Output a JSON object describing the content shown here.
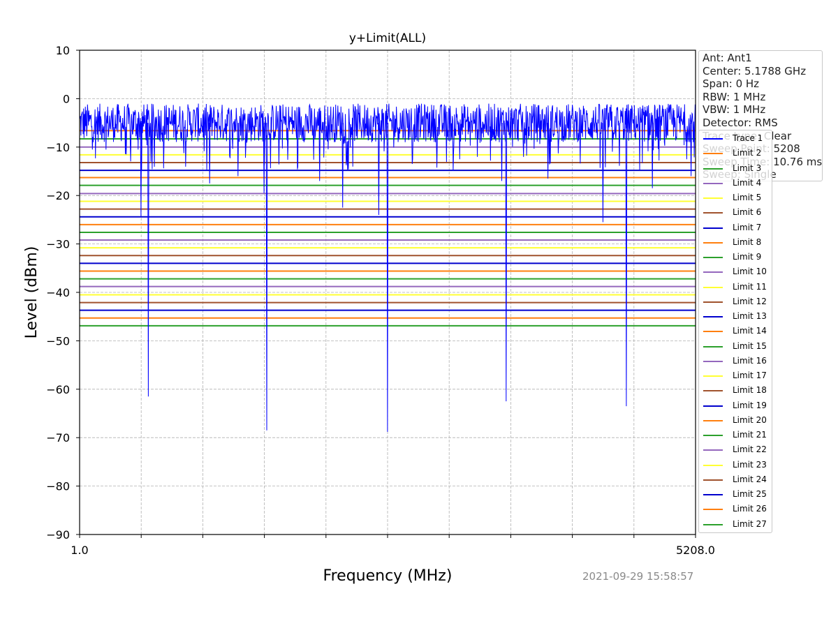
{
  "chart_data": {
    "type": "line",
    "title": "y+Limit(ALL)",
    "xlabel": "Frequency (MHz)",
    "ylabel": "Level (dBm)",
    "xlim": [
      1.0,
      5208.0
    ],
    "ylim": [
      -90,
      10
    ],
    "x_tick_labels": [
      "1.0",
      "5208.0"
    ],
    "x_minor_ticks": 9,
    "y_ticks": [
      10,
      0,
      -10,
      -20,
      -30,
      -40,
      -50,
      -60,
      -70,
      -80,
      -90
    ],
    "y_tick_labels": [
      "10",
      "0",
      "−10",
      "−20",
      "−30",
      "−40",
      "−50",
      "−60",
      "−70",
      "−80",
      "−90"
    ],
    "grid": true,
    "legend_position": "right",
    "trace": {
      "name": "Trace 1",
      "color": "#0000ff",
      "baseline_dbm": -5,
      "noise_range_dbm": [
        -9,
        -1
      ],
      "dips": [
        {
          "x": 582,
          "y": -61.5
        },
        {
          "x": 1583,
          "y": -68.5
        },
        {
          "x": 2604,
          "y": -68.8
        },
        {
          "x": 3607,
          "y": -62.5
        },
        {
          "x": 4623,
          "y": -63.5
        },
        {
          "x": 520,
          "y": -24.5
        },
        {
          "x": 1560,
          "y": -19.5
        },
        {
          "x": 2225,
          "y": -22.5
        },
        {
          "x": 2530,
          "y": -24
        },
        {
          "x": 3570,
          "y": -17
        },
        {
          "x": 4425,
          "y": -25.5
        },
        {
          "x": 4843,
          "y": -18.5
        },
        {
          "x": 1100,
          "y": -17.5
        },
        {
          "x": 1340,
          "y": -16
        },
        {
          "x": 2030,
          "y": -17
        },
        {
          "x": 3960,
          "y": -16.5
        },
        {
          "x": 5170,
          "y": -16
        }
      ]
    },
    "limits": [
      {
        "name": "Limit 2",
        "value": -6.6,
        "color": "#ff7f0e"
      },
      {
        "name": "Limit 3",
        "value": -8.3,
        "color": "#2ca02c"
      },
      {
        "name": "Limit 4",
        "value": -10,
        "color": "#9467bd"
      },
      {
        "name": "Limit 5",
        "value": -11.6,
        "color": "#ffff33"
      },
      {
        "name": "Limit 6",
        "value": -13.2,
        "color": "#a0522d"
      },
      {
        "name": "Limit 7",
        "value": -14.8,
        "color": "#0000cd"
      },
      {
        "name": "Limit 8",
        "value": -16.3,
        "color": "#ff7f0e"
      },
      {
        "name": "Limit 9",
        "value": -17.9,
        "color": "#2ca02c"
      },
      {
        "name": "Limit 10",
        "value": -19.6,
        "color": "#9467bd"
      },
      {
        "name": "Limit 11",
        "value": -21.2,
        "color": "#ffff33"
      },
      {
        "name": "Limit 12",
        "value": -22.8,
        "color": "#a0522d"
      },
      {
        "name": "Limit 13",
        "value": -24.4,
        "color": "#0000cd"
      },
      {
        "name": "Limit 14",
        "value": -26,
        "color": "#ff7f0e"
      },
      {
        "name": "Limit 15",
        "value": -27.6,
        "color": "#2ca02c"
      },
      {
        "name": "Limit 16",
        "value": -29.2,
        "color": "#9467bd"
      },
      {
        "name": "Limit 17",
        "value": -30.8,
        "color": "#ffff33"
      },
      {
        "name": "Limit 18",
        "value": -32.4,
        "color": "#a0522d"
      },
      {
        "name": "Limit 19",
        "value": -34,
        "color": "#0000cd"
      },
      {
        "name": "Limit 20",
        "value": -35.6,
        "color": "#ff7f0e"
      },
      {
        "name": "Limit 21",
        "value": -37.2,
        "color": "#2ca02c"
      },
      {
        "name": "Limit 22",
        "value": -38.8,
        "color": "#9467bd"
      },
      {
        "name": "Limit 23",
        "value": -40.5,
        "color": "#ffff33"
      },
      {
        "name": "Limit 24",
        "value": -42.1,
        "color": "#a0522d"
      },
      {
        "name": "Limit 25",
        "value": -43.7,
        "color": "#0000cd"
      },
      {
        "name": "Limit 26",
        "value": -45.3,
        "color": "#ff7f0e"
      },
      {
        "name": "Limit 27",
        "value": -46.9,
        "color": "#2ca02c"
      }
    ]
  },
  "info_box": [
    "Ant: Ant1",
    "Center: 5.1788 GHz",
    "Span: 0 Hz",
    "RBW: 1 MHz",
    "VBW: 1 MHz",
    "Detector: RMS",
    "Trace type: Clear",
    "Sweep Point: 5208",
    "Sweep Time: 10.76 ms",
    "Sweep: Single"
  ],
  "timestamp": "2021-09-29 15:58:57"
}
